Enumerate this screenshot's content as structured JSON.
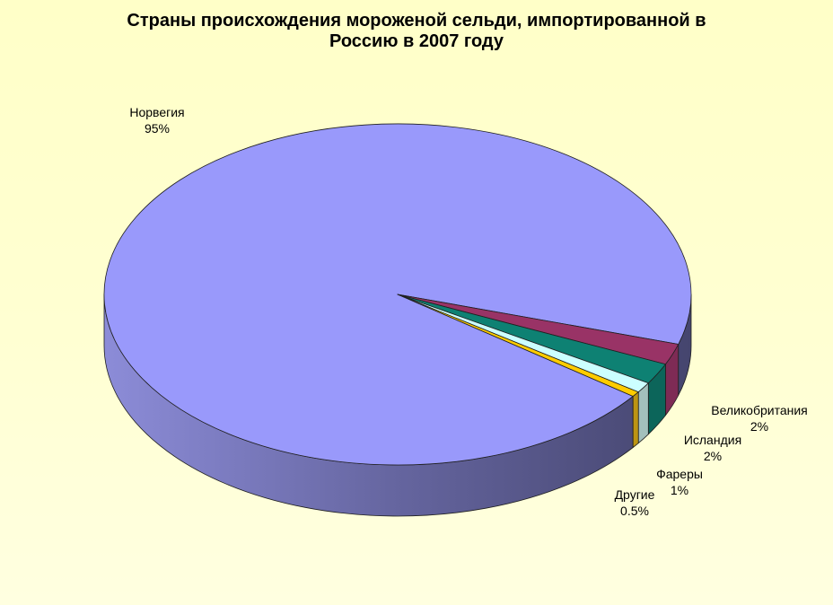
{
  "header": {
    "line1": "Страны происхождения мороженой сельди, импортированной в",
    "line2": "Россию в 2007 году"
  },
  "chart_data": {
    "type": "pie",
    "style": "3d",
    "title": "Страны происхождения мороженой сельди, импортированной в Россию в 2007 году",
    "legend_position": "none",
    "data_labels": "outside, category name + percent",
    "background_gradient": [
      "#FFFFC8",
      "#FFFFE0"
    ],
    "slices": [
      {
        "label": "Норвегия",
        "value": 95,
        "display": "95%",
        "color": "#9999FB",
        "side": "gradient"
      },
      {
        "label": "Великобритания",
        "value": 2,
        "display": "2%",
        "color": "#993366",
        "side": "#7E2B55"
      },
      {
        "label": "Исландия",
        "value": 2,
        "display": "2%",
        "color": "#0E8173",
        "side": "#0C655A"
      },
      {
        "label": "Фареры",
        "value": 1,
        "display": "1%",
        "color": "#CCFFFF",
        "side": "#A3C0BC"
      },
      {
        "label": "Другие",
        "value": 0.5,
        "display": "0.5%",
        "color": "#FFCC00",
        "side": "#BC9513"
      }
    ],
    "outline_color": "#202020",
    "side_gradient": [
      "#8C8CD8",
      "#65659F",
      "#45456E"
    ]
  }
}
